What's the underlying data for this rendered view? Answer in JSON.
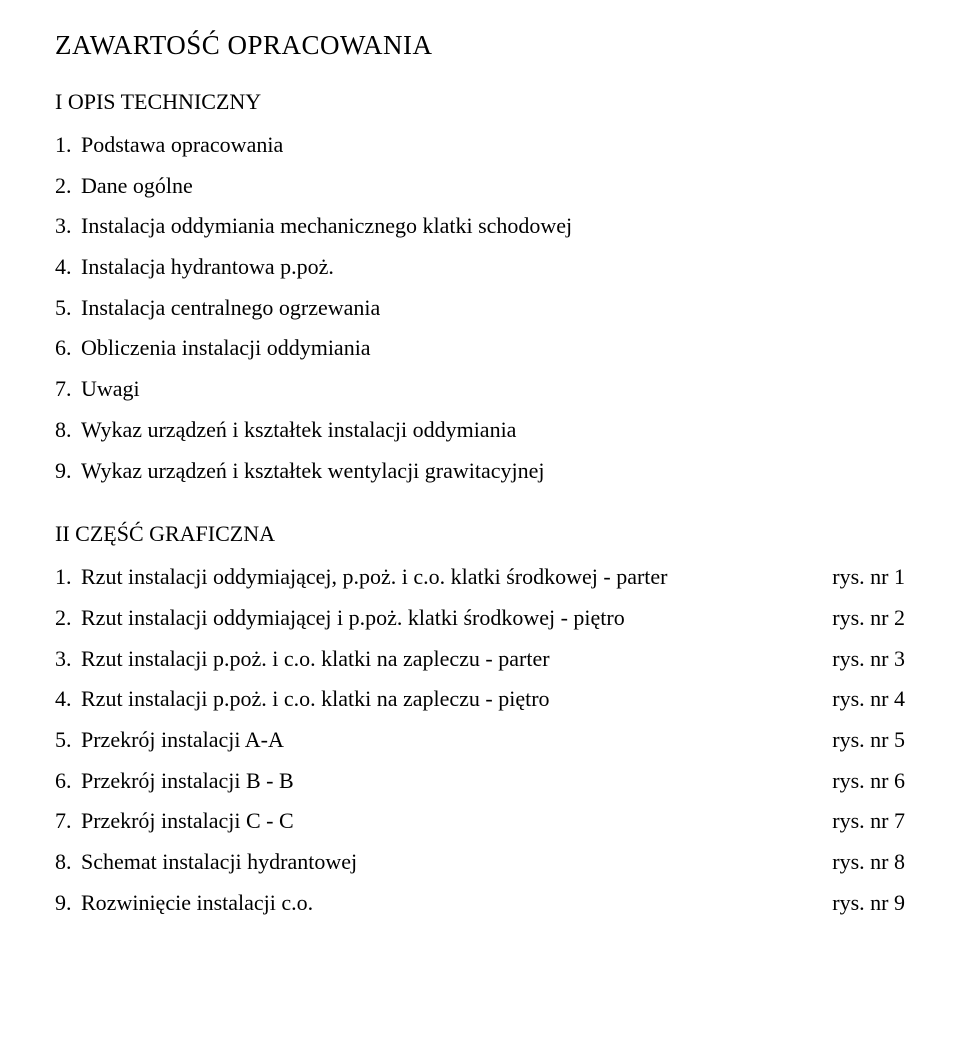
{
  "title": "ZAWARTOŚĆ OPRACOWANIA",
  "section1": {
    "heading": "I OPIS TECHNICZNY",
    "items": [
      {
        "num": "1.",
        "text": "Podstawa opracowania"
      },
      {
        "num": "2.",
        "text": "Dane ogólne"
      },
      {
        "num": "3.",
        "text": "Instalacja oddymiania mechanicznego klatki schodowej"
      },
      {
        "num": "4.",
        "text": "Instalacja hydrantowa p.poż."
      },
      {
        "num": "5.",
        "text": "Instalacja centralnego ogrzewania"
      },
      {
        "num": "6.",
        "text": "Obliczenia instalacji oddymiania"
      },
      {
        "num": "7.",
        "text": "Uwagi"
      },
      {
        "num": "8.",
        "text": "Wykaz urządzeń i kształtek instalacji oddymiania"
      },
      {
        "num": "9.",
        "text": "Wykaz urządzeń i kształtek wentylacji grawitacyjnej"
      }
    ]
  },
  "section2": {
    "heading": "II CZĘŚĆ  GRAFICZNA",
    "items": [
      {
        "num": "1.",
        "text": "Rzut instalacji oddymiającej, p.poż. i c.o. klatki środkowej  - parter",
        "ref": "rys. nr 1"
      },
      {
        "num": "2.",
        "text": "Rzut instalacji oddymiającej i p.poż. klatki środkowej - piętro",
        "ref": "rys. nr 2"
      },
      {
        "num": "3.",
        "text": "Rzut instalacji p.poż. i c.o. klatki na zapleczu - parter",
        "ref": "rys. nr 3"
      },
      {
        "num": "4.",
        "text": "Rzut instalacji p.poż. i c.o. klatki na zapleczu - piętro",
        "ref": "rys. nr 4"
      },
      {
        "num": "5.",
        "text": "Przekrój instalacji  A-A",
        "ref": "rys. nr 5"
      },
      {
        "num": "6.",
        "text": "Przekrój instalacji  B - B",
        "ref": "rys. nr 6"
      },
      {
        "num": "7.",
        "text": "Przekrój instalacji  C - C",
        "ref": "rys. nr 7"
      },
      {
        "num": "8.",
        "text": "Schemat  instalacji hydrantowej",
        "ref": "rys. nr 8"
      },
      {
        "num": "9.",
        "text": "Rozwinięcie instalacji c.o.",
        "ref": "rys. nr 9"
      }
    ]
  },
  "style": {
    "background_color": "#ffffff",
    "text_color": "#000000",
    "font_family": "Times New Roman",
    "title_fontsize": 27,
    "heading_fontsize": 22,
    "body_fontsize": 22,
    "line_height": 1.85
  }
}
